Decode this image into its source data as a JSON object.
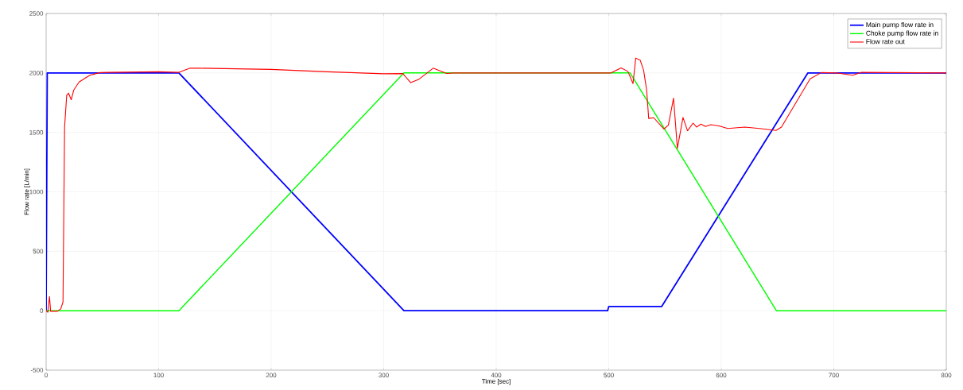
{
  "chart_data": {
    "type": "line",
    "xlabel": "Time [sec]",
    "ylabel": "Flow rate [L/min]",
    "xlim": [
      0,
      800
    ],
    "ylim": [
      -500,
      2500
    ],
    "xticks": [
      0,
      100,
      200,
      300,
      400,
      500,
      600,
      700,
      800
    ],
    "yticks": [
      -500,
      0,
      500,
      1000,
      1500,
      2000,
      2500
    ],
    "grid": true,
    "legend": "top right",
    "marker": "none",
    "line_style": "solid",
    "series": [
      {
        "name": "Main pump flow rate in",
        "color": "#0000ff",
        "x": [
          0,
          1,
          118,
          318,
          499,
          500,
          547,
          677,
          800
        ],
        "values": [
          0,
          2000,
          2000,
          0,
          0,
          35,
          35,
          2000,
          2000
        ]
      },
      {
        "name": "Choke pump flow rate in",
        "color": "#00ff00",
        "x": [
          0,
          118,
          318,
          519,
          649,
          800
        ],
        "values": [
          0,
          0,
          2000,
          2000,
          0,
          0
        ]
      },
      {
        "name": "Flow rate out",
        "color": "#ff0000",
        "x": [
          0,
          1.5,
          3,
          4,
          10,
          13,
          15,
          16.4,
          18.3,
          19.9,
          22.3,
          24.6,
          29.3,
          38.8,
          48,
          55,
          100,
          118,
          128,
          136,
          200,
          250,
          300,
          317,
          324,
          331,
          344,
          356,
          362,
          502,
          511,
          517,
          521.6,
          524,
          528,
          531,
          533.7,
          535.5,
          540,
          549,
          553,
          557.6,
          561,
          566,
          570,
          575,
          578,
          582,
          586,
          590.6,
          598,
          605.7,
          621,
          634,
          648.6,
          653.5,
          679,
          689,
          702,
          717,
          724.6,
          800
        ],
        "values": [
          0,
          -13,
          120,
          -5,
          -5,
          15,
          73,
          1545,
          1813,
          1830,
          1775,
          1857,
          1924,
          1980,
          2003,
          2005,
          2010,
          2005,
          2040,
          2040,
          2030,
          2010,
          1993,
          1995,
          1918,
          1945,
          2040,
          1995,
          2000,
          2000,
          2042,
          2013,
          1910,
          2125,
          2107,
          2023,
          1855,
          1617,
          1623,
          1528,
          1560,
          1788,
          1365,
          1626,
          1514,
          1578,
          1545,
          1570,
          1550,
          1565,
          1555,
          1533,
          1545,
          1533,
          1516,
          1545,
          1951,
          2003,
          2000,
          1980,
          2005,
          2000
        ]
      }
    ]
  }
}
